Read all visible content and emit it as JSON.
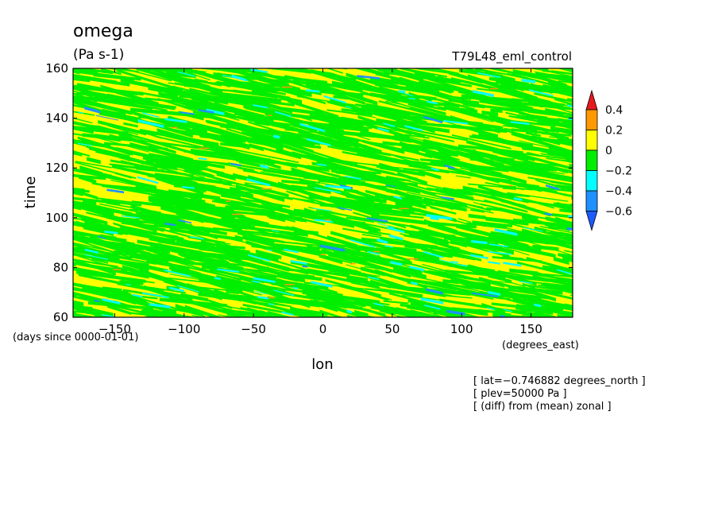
{
  "chart_data": {
    "type": "heatmap",
    "title": "omega",
    "units": "(Pa s-1)",
    "dataset": "T79L48_eml_control",
    "xlabel": "lon",
    "x_units": "(degrees_east)",
    "ylabel": "time",
    "y_units": "(days since 0000-01-01)",
    "xlim": [
      -180,
      180
    ],
    "ylim": [
      60,
      160
    ],
    "x_ticks": [
      -150,
      -100,
      -50,
      0,
      50,
      100,
      150
    ],
    "y_ticks": [
      60,
      80,
      100,
      120,
      140,
      160
    ],
    "x_tick_labels": [
      "−150",
      "−100",
      "−50",
      "0",
      "50",
      "100",
      "150"
    ],
    "y_tick_labels": [
      "60",
      "80",
      "100",
      "120",
      "140",
      "160"
    ],
    "color_levels": [
      -0.6,
      -0.4,
      -0.2,
      0,
      0.2,
      0.4
    ],
    "colorbar_labels": [
      "0.4",
      "0.2",
      "0",
      "−0.2",
      "−0.4",
      "−0.6"
    ],
    "colorbar_colors": [
      "#e8191e",
      "#ff9900",
      "#ffff00",
      "#00ee00",
      "#00ffff",
      "#1e90ff",
      "#1c5cff"
    ],
    "dominant_range": [
      -0.2,
      0.2
    ],
    "pattern": "westward-propagating streaks sloping down to the right"
  },
  "annotations": [
    "[ lat=−0.746882 degrees_north ]",
    "[ plev=50000 Pa ]",
    "[ (diff) from (mean) zonal ]"
  ]
}
